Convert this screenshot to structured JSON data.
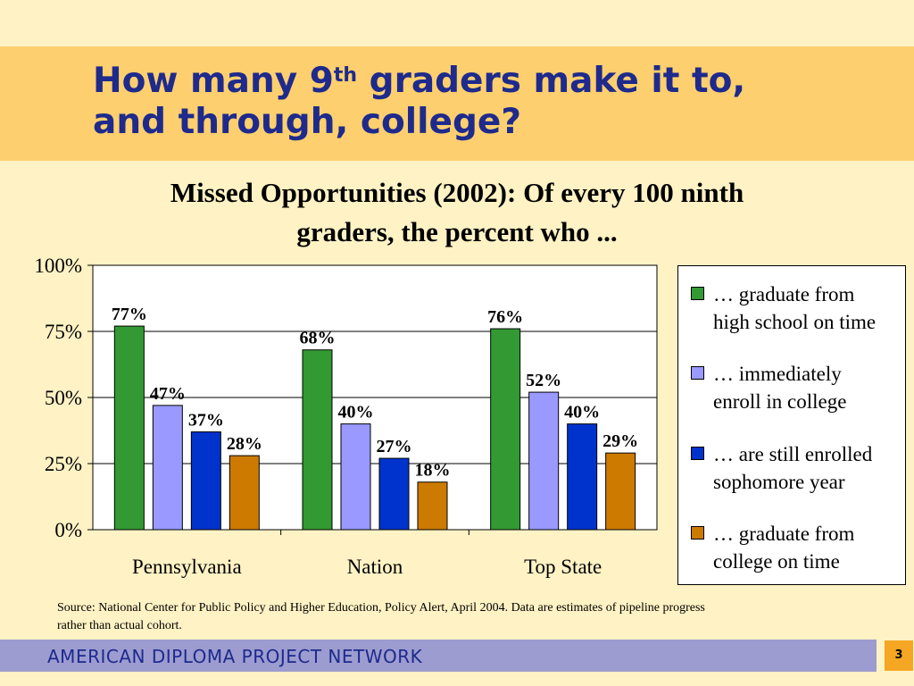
{
  "slide": {
    "title_part1": "How many 9",
    "title_sup": "th",
    "title_part2": " graders make it to,",
    "title_line2": "and through, college?"
  },
  "chart_data": {
    "type": "bar",
    "title_line1": "Missed Opportunities (2002):  Of every 100 ninth",
    "title_line2": "graders, the percent who ...",
    "categories": [
      "Pennsylvania",
      "Nation",
      "Top State"
    ],
    "series": [
      {
        "name": "… graduate from high school on time",
        "values": [
          77,
          68,
          76
        ],
        "labels": [
          "77%",
          "68%",
          "76%"
        ],
        "color": "#339933"
      },
      {
        "name": "… immediately enroll in college",
        "values": [
          47,
          40,
          52
        ],
        "labels": [
          "47%",
          "40%",
          "52%"
        ],
        "color": "#9999FF"
      },
      {
        "name": "… are still enrolled sophomore year",
        "values": [
          37,
          27,
          40
        ],
        "labels": [
          "37%",
          "27%",
          "40%"
        ],
        "color": "#0033CC"
      },
      {
        "name": "… graduate from college on time",
        "values": [
          28,
          18,
          29
        ],
        "labels": [
          "28%",
          "18%",
          "29%"
        ],
        "color": "#CC7A00"
      }
    ],
    "ylim": [
      0,
      100
    ],
    "yticks": [
      "0%",
      "25%",
      "50%",
      "75%",
      "100%"
    ],
    "grid": true,
    "legend": "right",
    "xlabel": "",
    "ylabel": ""
  },
  "legend": {
    "items": [
      {
        "line1": "… graduate from",
        "line2": "high school on time",
        "color": "#339933"
      },
      {
        "line1": "… immediately",
        "line2": "enroll in college",
        "color": "#9999FF"
      },
      {
        "line1": "… are still enrolled",
        "line2": "sophomore year",
        "color": "#0033CC"
      },
      {
        "line1": "… graduate from",
        "line2": "college on time",
        "color": "#CC7A00"
      }
    ]
  },
  "source": {
    "line1": "Source: National Center for Public Policy and Higher Education, Policy Alert, April 2004.  Data are estimates of pipeline progress",
    "line2": "rather than actual cohort."
  },
  "footer": {
    "org": "AMERICAN DIPLOMA PROJECT NETWORK",
    "page": "3"
  }
}
